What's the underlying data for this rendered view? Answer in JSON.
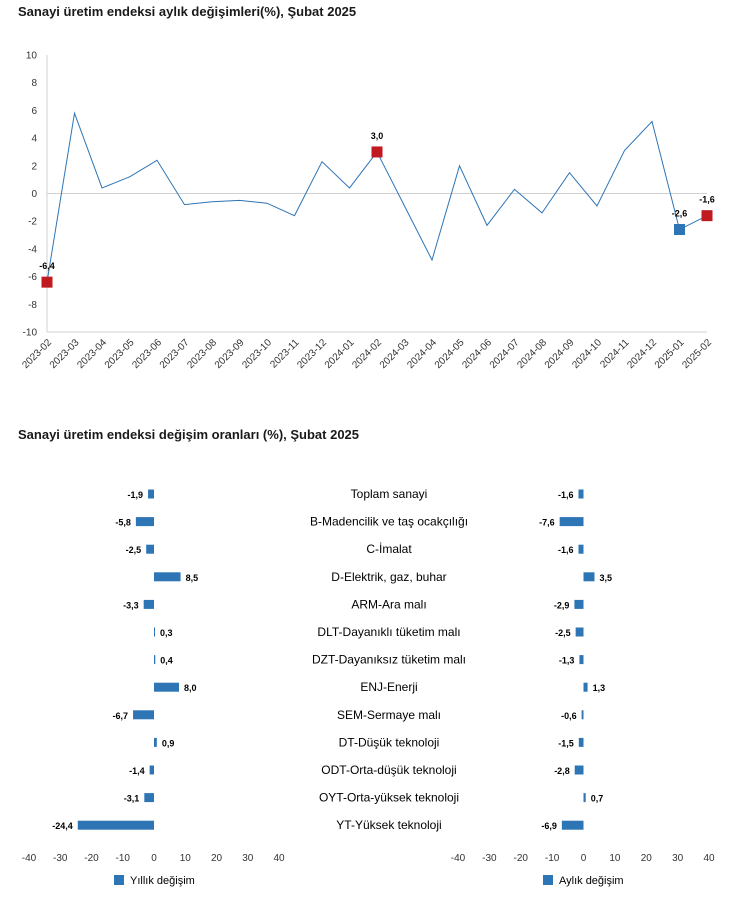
{
  "chart_data": [
    {
      "type": "line",
      "title": "Sanayi üretim endeksi aylık değişimleri(%), Şubat 2025",
      "x": [
        "2023-02",
        "2023-03",
        "2023-04",
        "2023-05",
        "2023-06",
        "2023-07",
        "2023-08",
        "2023-09",
        "2023-10",
        "2023-11",
        "2023-12",
        "2024-01",
        "2024-02",
        "2024-03",
        "2024-04",
        "2024-05",
        "2024-06",
        "2024-07",
        "2024-08",
        "2024-09",
        "2024-10",
        "2024-11",
        "2024-12",
        "2025-01",
        "2025-02"
      ],
      "series": [
        {
          "name": "Aylık değişim",
          "color": "#2e75b6",
          "values": [
            -6.4,
            5.8,
            0.4,
            1.2,
            2.4,
            -0.8,
            -0.6,
            -0.5,
            -0.7,
            -1.6,
            2.3,
            0.4,
            3.0,
            -0.9,
            -4.8,
            2.0,
            -2.3,
            0.3,
            -1.4,
            1.5,
            -0.9,
            3.1,
            5.2,
            -2.6,
            -1.6
          ]
        }
      ],
      "highlights": [
        {
          "x": "2023-02",
          "value": -6.4,
          "label": "-6,4",
          "color": "#c0191f"
        },
        {
          "x": "2024-02",
          "value": 3.0,
          "label": "3,0",
          "color": "#c0191f"
        },
        {
          "x": "2025-01",
          "value": -2.6,
          "label": "-2,6",
          "color": "#2e75b6"
        },
        {
          "x": "2025-02",
          "value": -1.6,
          "label": "-1,6",
          "color": "#c0191f"
        }
      ],
      "ylim": [
        -10,
        10
      ],
      "yticks": [
        10,
        8,
        6,
        4,
        2,
        0,
        -2,
        -4,
        -6,
        -8,
        -10
      ],
      "grid": false,
      "xlabel": "",
      "ylabel": ""
    },
    {
      "type": "bar",
      "orientation": "horizontal",
      "title": "Sanayi üretim endeksi değişim oranları (%), Şubat 2025",
      "categories": [
        "Toplam sanayi",
        "B-Madencilik ve taş ocakçılığı",
        "C-İmalat",
        "D-Elektrik, gaz, buhar",
        "ARM-Ara malı",
        "DLT-Dayanıklı tüketim malı",
        "DZT-Dayanıksız tüketim malı",
        "ENJ-Enerji",
        "SEM-Sermaye malı",
        "DT-Düşük teknoloji",
        "ODT-Orta-düşük teknoloji",
        "OYT-Orta-yüksek teknoloji",
        "YT-Yüksek teknoloji"
      ],
      "color": "#2e75b6",
      "series": [
        {
          "name": "Yıllık değişim",
          "values": [
            -1.9,
            -5.8,
            -2.5,
            8.5,
            -3.3,
            0.3,
            0.4,
            8.0,
            -6.7,
            0.9,
            -1.4,
            -3.1,
            -24.4
          ],
          "labels": [
            "-1,9",
            "-5,8",
            "-2,5",
            "8,5",
            "-3,3",
            "0,3",
            "0,4",
            "8,0",
            "-6,7",
            "0,9",
            "-1,4",
            "-3,1",
            "-24,4"
          ]
        },
        {
          "name": "Aylık değişim",
          "values": [
            -1.6,
            -7.6,
            -1.6,
            3.5,
            -2.9,
            -2.5,
            -1.3,
            1.3,
            -0.6,
            -1.5,
            -2.8,
            0.7,
            -6.9
          ],
          "labels": [
            "-1,6",
            "-7,6",
            "-1,6",
            "3,5",
            "-2,9",
            "-2,5",
            "-1,3",
            "1,3",
            "-0,6",
            "-1,5",
            "-2,8",
            "0,7",
            "-6,9"
          ]
        }
      ],
      "xlim": [
        -40,
        40
      ],
      "xticks": [
        -40,
        -30,
        -20,
        -10,
        0,
        10,
        20,
        30,
        40
      ],
      "legend": "bottom"
    }
  ]
}
